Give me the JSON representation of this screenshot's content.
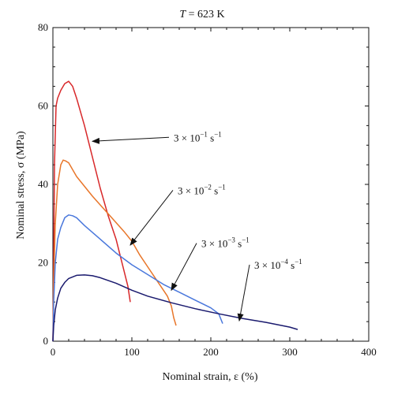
{
  "chart_data": {
    "type": "line",
    "title": "T = 623 K",
    "title_parts": {
      "symbol": "T",
      "rest": " = 623 K"
    },
    "xlabel": "Nominal strain, ε (%)",
    "ylabel": "Nominal stress, σ (MPa)",
    "xlim": [
      0,
      400
    ],
    "ylim": [
      0,
      80
    ],
    "xticks": [
      0,
      100,
      200,
      300,
      400
    ],
    "yticks": [
      0,
      20,
      40,
      60,
      80
    ],
    "grid": false,
    "legend": "none",
    "series": [
      {
        "name": "3 × 10⁻¹ s⁻¹",
        "color": "#d8282a",
        "x": [
          0,
          1,
          2,
          4,
          6,
          10,
          15,
          20,
          25,
          30,
          40,
          50,
          60,
          70,
          80,
          85,
          90,
          95,
          98
        ],
        "y": [
          0,
          20,
          45,
          60,
          62,
          64,
          65.7,
          66.3,
          65,
          62,
          55,
          47,
          39,
          32,
          26,
          22,
          18,
          14,
          10
        ]
      },
      {
        "name": "3 × 10⁻² s⁻¹",
        "color": "#e8762a",
        "x": [
          0,
          1,
          3,
          6,
          10,
          13,
          16,
          20,
          30,
          50,
          70,
          90,
          100,
          110,
          120,
          130,
          140,
          145,
          150,
          153,
          156
        ],
        "y": [
          0,
          15,
          30,
          40,
          45,
          46.2,
          46,
          45.5,
          42,
          37,
          32.5,
          28,
          25.5,
          22,
          19,
          16,
          13,
          11.5,
          9,
          6,
          4
        ]
      },
      {
        "name": "3 × 10⁻³ s⁻¹",
        "color": "#4a78dc",
        "x": [
          0,
          1,
          3,
          6,
          10,
          15,
          20,
          25,
          30,
          40,
          60,
          80,
          100,
          120,
          140,
          160,
          180,
          200,
          210,
          215
        ],
        "y": [
          0,
          10,
          20,
          26,
          29,
          31.5,
          32.2,
          32,
          31.5,
          29.5,
          26,
          22.5,
          19.5,
          17,
          14.5,
          12.5,
          10.5,
          8.5,
          7,
          4.5
        ]
      },
      {
        "name": "3 × 10⁻⁴ s⁻¹",
        "color": "#1a1a6e",
        "x": [
          0,
          1,
          3,
          6,
          10,
          15,
          20,
          30,
          40,
          50,
          60,
          80,
          100,
          120,
          150,
          180,
          210,
          240,
          270,
          300,
          310
        ],
        "y": [
          0,
          4,
          8,
          11,
          13.5,
          15,
          16,
          16.8,
          16.9,
          16.7,
          16.2,
          14.8,
          13,
          11.5,
          9.8,
          8.3,
          7,
          5.8,
          4.8,
          3.6,
          3
        ]
      }
    ],
    "annotations": [
      {
        "base": "3 × 10",
        "exp": "−1",
        "unit": " s",
        "unit_exp": "−1",
        "series": 0,
        "text_at": [
          153,
          51
        ],
        "arrow_to": [
          50,
          51
        ]
      },
      {
        "base": "3 × 10",
        "exp": "−2",
        "unit": " s",
        "unit_exp": "−1",
        "series": 1,
        "text_at": [
          158,
          37.5
        ],
        "arrow_to": [
          98,
          24.5
        ]
      },
      {
        "base": "3 × 10",
        "exp": "−3",
        "unit": " s",
        "unit_exp": "−1",
        "series": 2,
        "text_at": [
          188,
          24
        ],
        "arrow_to": [
          150,
          13
        ]
      },
      {
        "base": "3 × 10",
        "exp": "−4",
        "unit": " s",
        "unit_exp": "−1",
        "series": 3,
        "text_at": [
          255,
          18.5
        ],
        "arrow_to": [
          236,
          5.2
        ]
      }
    ]
  }
}
